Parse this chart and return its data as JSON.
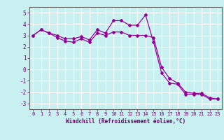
{
  "x": [
    0,
    1,
    2,
    3,
    4,
    5,
    6,
    7,
    8,
    9,
    10,
    11,
    12,
    13,
    14,
    15,
    16,
    17,
    18,
    19,
    20,
    21,
    22,
    23
  ],
  "y_line": [
    3.0,
    3.5,
    3.2,
    3.0,
    2.7,
    2.7,
    2.9,
    2.6,
    3.5,
    3.2,
    4.3,
    4.3,
    3.9,
    3.9,
    4.8,
    2.4,
    -0.3,
    -1.2,
    -1.3,
    -2.2,
    -2.2,
    -2.2,
    -2.6,
    -2.6
  ],
  "y_line2": [
    3.0,
    3.5,
    3.2,
    2.8,
    2.5,
    2.4,
    2.7,
    2.4,
    3.2,
    3.0,
    3.3,
    3.3,
    3.0,
    3.0,
    3.0,
    2.8,
    0.2,
    -0.8,
    -1.2,
    -2.0,
    -2.1,
    -2.1,
    -2.5,
    -2.6
  ],
  "line_color": "#990099",
  "bg_color": "#c8f0f0",
  "grid_color": "#ffffff",
  "axis_color": "#666666",
  "ylim": [
    -3.5,
    5.5
  ],
  "yticks": [
    -3,
    -2,
    -1,
    0,
    1,
    2,
    3,
    4,
    5
  ],
  "xlim": [
    -0.5,
    23.5
  ],
  "xticks": [
    0,
    1,
    2,
    3,
    4,
    5,
    6,
    7,
    8,
    9,
    10,
    11,
    12,
    13,
    14,
    15,
    16,
    17,
    18,
    19,
    20,
    21,
    22,
    23
  ],
  "xlabel": "Windchill (Refroidissement éolien,°C)",
  "font_color": "#660066",
  "tick_fontsize": 5.0,
  "xlabel_fontsize": 5.5
}
